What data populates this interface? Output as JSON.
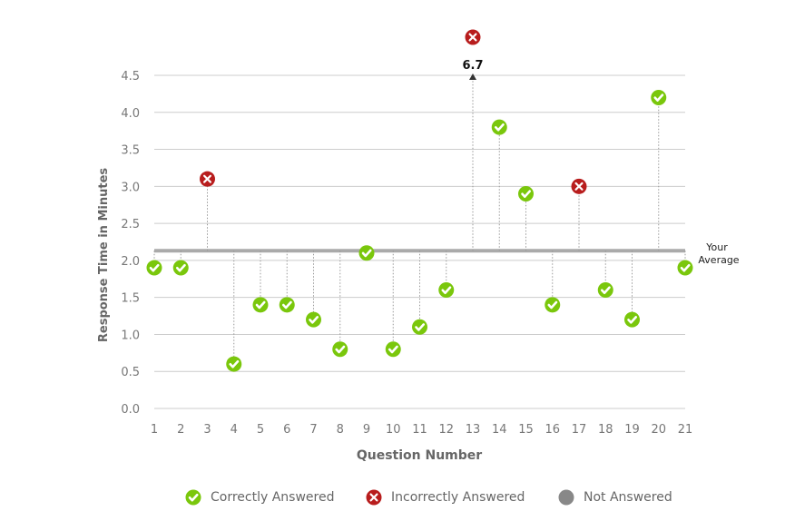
{
  "chart_data": {
    "type": "scatter",
    "ylabel": "Response Time in Minutes",
    "xlabel": "Question Number",
    "ylim": [
      0,
      4.5
    ],
    "y_ticks": [
      "0.0",
      "0.5",
      "1.0",
      "1.5",
      "2.0",
      "2.5",
      "3.0",
      "3.5",
      "4.0",
      "4.5"
    ],
    "x_ticks": [
      "1",
      "2",
      "3",
      "4",
      "5",
      "6",
      "7",
      "8",
      "9",
      "10",
      "11",
      "12",
      "13",
      "14",
      "15",
      "16",
      "17",
      "18",
      "19",
      "20",
      "21"
    ],
    "grid": "horizontal",
    "average": {
      "value": 2.13,
      "label_line1": "Your",
      "label_line2": "Average"
    },
    "points": [
      {
        "q": 1,
        "time": 1.9,
        "status": "correct"
      },
      {
        "q": 2,
        "time": 1.9,
        "status": "correct"
      },
      {
        "q": 3,
        "time": 3.1,
        "status": "incorrect"
      },
      {
        "q": 4,
        "time": 0.6,
        "status": "correct"
      },
      {
        "q": 5,
        "time": 1.4,
        "status": "correct"
      },
      {
        "q": 6,
        "time": 1.4,
        "status": "correct"
      },
      {
        "q": 7,
        "time": 1.2,
        "status": "correct"
      },
      {
        "q": 8,
        "time": 0.8,
        "status": "correct"
      },
      {
        "q": 9,
        "time": 2.1,
        "status": "correct"
      },
      {
        "q": 10,
        "time": 0.8,
        "status": "correct"
      },
      {
        "q": 11,
        "time": 1.1,
        "status": "correct"
      },
      {
        "q": 12,
        "time": 1.6,
        "status": "correct"
      },
      {
        "q": 13,
        "time": 6.7,
        "status": "incorrect",
        "off_scale": true,
        "label": "6.7"
      },
      {
        "q": 14,
        "time": 3.8,
        "status": "correct"
      },
      {
        "q": 15,
        "time": 2.9,
        "status": "correct"
      },
      {
        "q": 16,
        "time": 1.4,
        "status": "correct"
      },
      {
        "q": 17,
        "time": 3.0,
        "status": "incorrect"
      },
      {
        "q": 18,
        "time": 1.6,
        "status": "correct"
      },
      {
        "q": 19,
        "time": 1.2,
        "status": "correct"
      },
      {
        "q": 20,
        "time": 4.2,
        "status": "correct"
      },
      {
        "q": 21,
        "time": 1.9,
        "status": "correct"
      }
    ],
    "legend": [
      {
        "key": "correct",
        "label": "Correctly Answered"
      },
      {
        "key": "incorrect",
        "label": "Incorrectly Answered"
      },
      {
        "key": "not_answered",
        "label": "Not Answered"
      }
    ],
    "colors": {
      "correct": "#7ac70c",
      "incorrect": "#b81d1d",
      "not_answered": "#888888",
      "grid": "#cccccc",
      "average_line": "#aaaaaa",
      "stem": "#999999"
    }
  }
}
